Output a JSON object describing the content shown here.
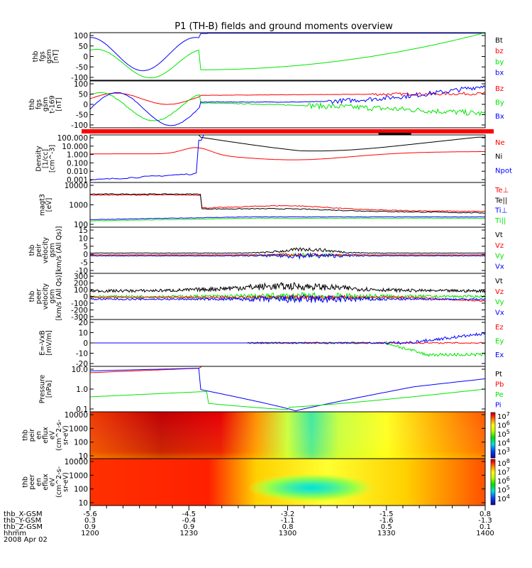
{
  "title": "P1 (TH-B) fields and ground moments overview",
  "colors": {
    "black": "#000000",
    "red": "#ff0000",
    "green": "#00e600",
    "blue": "#0000ff"
  },
  "panels": [
    {
      "id": "fgs",
      "ylabel": [
        "thb",
        "fgs",
        "gsm",
        "[nT]"
      ],
      "yticks": [
        "100",
        "50",
        "0",
        "-50",
        "-100"
      ],
      "legend": [
        {
          "text": "Bt",
          "color": "black"
        },
        {
          "text": "bz",
          "color": "red"
        },
        {
          "text": "by",
          "color": "green"
        },
        {
          "text": "bx",
          "color": "blue"
        }
      ]
    },
    {
      "id": "fgs_t169",
      "ylabel": [
        "thb",
        "fgs",
        "gsm",
        "t-169",
        "[nT]"
      ],
      "yticks": [
        "100",
        "50",
        "0",
        "-50",
        "-100"
      ],
      "legend": [
        {
          "text": "Bz",
          "color": "red"
        },
        {
          "text": "By",
          "color": "green"
        },
        {
          "text": "Bx",
          "color": "blue"
        }
      ]
    },
    {
      "id": "density",
      "ylabel": [
        "Density",
        "[1/cc]",
        "[cm^-3]"
      ],
      "yticks": [
        "100.000",
        "10.000",
        "1.000",
        "0.100",
        "0.010",
        "0.001"
      ],
      "legend": [
        {
          "text": "Ne",
          "color": "red"
        },
        {
          "text": "Ni",
          "color": "black"
        },
        {
          "text": "Npot",
          "color": "blue"
        }
      ]
    },
    {
      "id": "temperature",
      "ylabel": [
        "magt3",
        "[eV]"
      ],
      "yticks": [
        "10000",
        "1000",
        "100"
      ],
      "legend": [
        {
          "text": "Te⊥",
          "color": "red"
        },
        {
          "text": "Te||",
          "color": "black"
        },
        {
          "text": "Ti⊥",
          "color": "blue"
        },
        {
          "text": "Ti||",
          "color": "green"
        }
      ]
    },
    {
      "id": "peir_vel",
      "ylabel": [
        "thb",
        "peir",
        "velocity",
        "gsm",
        "[km/s (All Qs)]"
      ],
      "yticks": [
        "15",
        "10",
        "5",
        "0",
        "-5",
        "-10"
      ],
      "legend": [
        {
          "text": "Vt",
          "color": "black"
        },
        {
          "text": "Vz",
          "color": "red"
        },
        {
          "text": "Vy",
          "color": "green"
        },
        {
          "text": "Vx",
          "color": "blue"
        }
      ]
    },
    {
      "id": "peer_vel",
      "ylabel": [
        "thb",
        "peer",
        "velocity",
        "gsm",
        "[km/s (All Qs)]"
      ],
      "yticks": [
        "300",
        "200",
        "100",
        "0",
        "-100",
        "-200",
        "-300"
      ],
      "legend": [
        {
          "text": "Vt",
          "color": "black"
        },
        {
          "text": "Vz",
          "color": "red"
        },
        {
          "text": "Vy",
          "color": "green"
        },
        {
          "text": "Vx",
          "color": "blue"
        }
      ]
    },
    {
      "id": "efield",
      "ylabel": [
        "E=-VxB",
        "[mV/m]"
      ],
      "yticks": [
        "20",
        "10",
        "0",
        "-10",
        "-20"
      ],
      "legend": [
        {
          "text": "Ez",
          "color": "red"
        },
        {
          "text": "Ey",
          "color": "green"
        },
        {
          "text": "Ex",
          "color": "blue"
        }
      ]
    },
    {
      "id": "pressure",
      "ylabel": [
        "Pressure",
        "[nPa]"
      ],
      "yticks": [
        "10.0",
        "1.0",
        "0.1"
      ],
      "legend": [
        {
          "text": "Pt",
          "color": "black"
        },
        {
          "text": "Pb",
          "color": "red"
        },
        {
          "text": "Pe",
          "color": "green"
        },
        {
          "text": "Pi",
          "color": "blue"
        }
      ]
    },
    {
      "id": "peir_spec",
      "ylabel": [
        "thb",
        "peir",
        "en",
        "eflux",
        "eV",
        "(cm^2-s-",
        "sr-eV)"
      ],
      "yticks": [
        "10000",
        "1000",
        "100",
        "10"
      ],
      "cbar": [
        "10^7",
        "10^6",
        "10^5",
        "10^4",
        "10^3"
      ]
    },
    {
      "id": "peer_spec",
      "ylabel": [
        "thb",
        "peer",
        "en",
        "eflux",
        "eV",
        "(cm^2-s-",
        "sr-eV)"
      ],
      "yticks": [
        "10000",
        "1000",
        "100",
        "10"
      ],
      "cbar": [
        "10^8",
        "10^7",
        "10^6",
        "10^5",
        "10^4"
      ]
    }
  ],
  "xaxis": {
    "row_labels": [
      "thb_X-GSM",
      "thb_Y-GSM",
      "thb_Z-GSM",
      "hhmm",
      "2008 Apr 02"
    ],
    "ticks": [
      {
        "x": "-5.6",
        "y": "0.3",
        "z": "0.9",
        "t": "1200"
      },
      {
        "x": "-4.5",
        "y": "-0.4",
        "z": "0.9",
        "t": "1230"
      },
      {
        "x": "-3.2",
        "y": "-1.1",
        "z": "0.8",
        "t": "1300"
      },
      {
        "x": "-1.5",
        "y": "-1.6",
        "z": "0.5",
        "t": "1330"
      },
      {
        "x": "0.8",
        "y": "-1.3",
        "z": "0.1",
        "t": "1400"
      }
    ]
  },
  "chart_data": {
    "type": "line",
    "title": "P1 (TH-B) fields and ground moments overview",
    "x_unit": "hhmm",
    "x_range": [
      "1200",
      "1400"
    ],
    "panels": [
      {
        "name": "thb fgs gsm [nT]",
        "ylim": [
          -100,
          100
        ],
        "series": [
          {
            "name": "bx",
            "x": [
              "1200",
              "1210",
              "1220",
              "1230",
              "1240",
              "1300",
              "1330",
              "1400"
            ],
            "values": [
              75,
              -60,
              60,
              -50,
              100,
              100,
              100,
              100
            ]
          },
          {
            "name": "by",
            "x": [
              "1200",
              "1210",
              "1220",
              "1230",
              "1240",
              "1300",
              "1330",
              "1400"
            ],
            "values": [
              -20,
              -90,
              10,
              -80,
              -60,
              -40,
              20,
              100
            ]
          }
        ]
      },
      {
        "name": "thb fgs gsm t-169 [nT]",
        "ylim": [
          -100,
          100
        ],
        "series": [
          {
            "name": "Bz",
            "x": [
              "1200",
              "1230",
              "1300",
              "1330",
              "1400"
            ],
            "values": [
              40,
              20,
              30,
              30,
              60
            ]
          },
          {
            "name": "By",
            "x": [
              "1200",
              "1230",
              "1300",
              "1330",
              "1400"
            ],
            "values": [
              -10,
              20,
              0,
              -40,
              -20
            ]
          },
          {
            "name": "Bx",
            "x": [
              "1200",
              "1230",
              "1300",
              "1330",
              "1400"
            ],
            "values": [
              -20,
              -10,
              10,
              40,
              90
            ]
          }
        ]
      },
      {
        "name": "Density [1/cc]",
        "ylim": [
          0.001,
          100
        ],
        "log": true,
        "series": [
          {
            "name": "Ne",
            "x": [
              "1200",
              "1230",
              "1300",
              "1330",
              "1400"
            ],
            "values": [
              1.5,
              5,
              0.5,
              1,
              2
            ]
          },
          {
            "name": "Ni",
            "x": [
              "1230",
              "1300",
              "1330",
              "1400"
            ],
            "values": [
              100,
              2,
              20,
              80
            ]
          },
          {
            "name": "Npot",
            "x": [
              "1200",
              "1220",
              "1230"
            ],
            "values": [
              0.0005,
              0.005,
              20
            ]
          }
        ]
      },
      {
        "name": "magt3 [eV]",
        "ylim": [
          100,
          10000
        ],
        "log": true,
        "series": [
          {
            "name": "Te⊥",
            "x": [
              "1200",
              "1230",
              "1300",
              "1330",
              "1400"
            ],
            "values": [
              2800,
              500,
              900,
              700,
              300
            ]
          },
          {
            "name": "Te||",
            "x": [
              "1200",
              "1230",
              "1300",
              "1330",
              "1400"
            ],
            "values": [
              3000,
              500,
              700,
              450,
              250
            ]
          },
          {
            "name": "Ti⊥",
            "x": [
              "1200",
              "1230",
              "1300",
              "1330",
              "1400"
            ],
            "values": [
              180,
              200,
              260,
              250,
              230
            ]
          },
          {
            "name": "Ti||",
            "x": [
              "1200",
              "1230",
              "1300",
              "1330",
              "1400"
            ],
            "values": [
              170,
              190,
              250,
              240,
              220
            ]
          }
        ]
      },
      {
        "name": "thb peir velocity gsm [km/s]",
        "ylim": [
          -10,
          15
        ],
        "series": [
          {
            "name": "Vt",
            "x": [
              "1200",
              "1300",
              "1400"
            ],
            "values": [
              1,
              8,
              1
            ]
          }
        ]
      },
      {
        "name": "thb peer velocity gsm [km/s]",
        "ylim": [
          -300,
          300
        ],
        "series": [
          {
            "name": "Vt",
            "x": [
              "1200",
              "1300",
              "1400"
            ],
            "values": [
              60,
              150,
              40
            ]
          }
        ]
      },
      {
        "name": "E=-VxB [mV/m]",
        "ylim": [
          -20,
          20
        ],
        "series": [
          {
            "name": "Ey",
            "x": [
              "1200",
              "1300",
              "1330",
              "1400"
            ],
            "values": [
              0,
              0,
              -10,
              -15
            ]
          },
          {
            "name": "Ex",
            "x": [
              "1200",
              "1300",
              "1330",
              "1400"
            ],
            "values": [
              0,
              0,
              0,
              8
            ]
          }
        ]
      },
      {
        "name": "Pressure [nPa]",
        "ylim": [
          0.05,
          20
        ],
        "log": true,
        "series": [
          {
            "name": "Pb",
            "x": [
              "1200",
              "1230",
              "1240"
            ],
            "values": [
              10,
              20,
              20
            ]
          },
          {
            "name": "Pe",
            "x": [
              "1200",
              "1230",
              "1300",
              "1330",
              "1400"
            ],
            "values": [
              0.4,
              0.8,
              0.1,
              0.7,
              1
            ]
          },
          {
            "name": "Pi",
            "x": [
              "1200",
              "1230",
              "1300",
              "1330",
              "1400"
            ],
            "values": [
              20,
              25,
              0.05,
              1.5,
              3
            ]
          }
        ]
      }
    ]
  }
}
